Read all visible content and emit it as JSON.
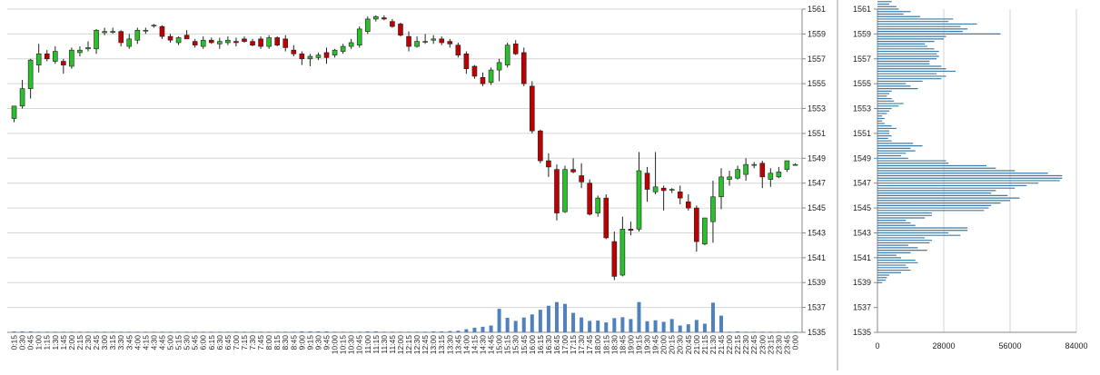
{
  "chart_data": [
    {
      "type": "candlestick",
      "name": "price-chart",
      "ylim": [
        1535,
        1561
      ],
      "y_ticks": [
        1535,
        1537,
        1539,
        1541,
        1543,
        1545,
        1547,
        1549,
        1551,
        1553,
        1555,
        1557,
        1559,
        1561
      ],
      "grid": true,
      "x_labels": [
        "0:15",
        "0:30",
        "0:45",
        "1:00",
        "1:15",
        "1:30",
        "1:45",
        "2:00",
        "2:15",
        "2:30",
        "2:45",
        "3:00",
        "3:15",
        "3:30",
        "3:45",
        "4:00",
        "4:15",
        "4:30",
        "4:45",
        "5:00",
        "5:15",
        "5:30",
        "5:45",
        "6:00",
        "6:15",
        "6:30",
        "6:45",
        "7:00",
        "7:15",
        "7:30",
        "7:45",
        "8:00",
        "8:15",
        "8:30",
        "8:45",
        "9:00",
        "9:15",
        "9:30",
        "9:45",
        "10:00",
        "10:15",
        "10:30",
        "10:45",
        "11:00",
        "11:15",
        "11:30",
        "11:45",
        "12:00",
        "12:15",
        "12:30",
        "12:45",
        "13:00",
        "13:15",
        "13:30",
        "13:45",
        "14:00",
        "14:15",
        "14:30",
        "14:45",
        "15:00",
        "15:15",
        "15:30",
        "15:45",
        "16:00",
        "16:15",
        "16:30",
        "16:45",
        "17:00",
        "17:15",
        "17:30",
        "17:45",
        "18:00",
        "18:15",
        "18:30",
        "18:45",
        "19:00",
        "19:15",
        "19:30",
        "19:45",
        "20:00",
        "20:15",
        "20:30",
        "20:45",
        "21:00",
        "21:15",
        "21:30",
        "21:45",
        "22:00",
        "22:15",
        "22:30",
        "22:45",
        "23:00",
        "23:15",
        "23:30",
        "23:45",
        "0:00"
      ],
      "candles": [
        [
          1552.2,
          1553.2,
          1551.9,
          1553.2
        ],
        [
          1553.2,
          1555.3,
          1553.0,
          1554.6
        ],
        [
          1554.6,
          1557.0,
          1553.8,
          1556.9
        ],
        [
          1556.5,
          1558.2,
          1555.9,
          1557.4
        ],
        [
          1557.4,
          1557.7,
          1556.8,
          1557.0
        ],
        [
          1556.8,
          1558.0,
          1556.6,
          1557.6
        ],
        [
          1556.8,
          1557.0,
          1555.8,
          1556.5
        ],
        [
          1556.4,
          1557.9,
          1556.2,
          1557.7
        ],
        [
          1557.5,
          1558.0,
          1557.2,
          1557.7
        ],
        [
          1557.8,
          1558.4,
          1557.6,
          1557.9
        ],
        [
          1557.8,
          1559.4,
          1557.4,
          1559.3
        ],
        [
          1559.1,
          1559.5,
          1558.9,
          1559.2
        ],
        [
          1559.2,
          1559.5,
          1559.0,
          1559.2
        ],
        [
          1559.2,
          1559.3,
          1558.0,
          1558.3
        ],
        [
          1558.0,
          1559.0,
          1557.8,
          1558.6
        ],
        [
          1558.5,
          1559.5,
          1558.2,
          1559.3
        ],
        [
          1559.3,
          1559.5,
          1559.0,
          1559.3
        ],
        [
          1559.7,
          1559.8,
          1559.5,
          1559.7
        ],
        [
          1559.6,
          1559.7,
          1558.6,
          1558.8
        ],
        [
          1558.8,
          1559.0,
          1558.3,
          1558.5
        ],
        [
          1558.3,
          1558.8,
          1558.1,
          1558.7
        ],
        [
          1558.9,
          1559.3,
          1558.7,
          1558.6
        ],
        [
          1558.4,
          1558.6,
          1557.9,
          1558.1
        ],
        [
          1558.0,
          1558.8,
          1557.8,
          1558.5
        ],
        [
          1558.5,
          1558.7,
          1558.2,
          1558.3
        ],
        [
          1558.2,
          1558.7,
          1557.8,
          1558.4
        ],
        [
          1558.3,
          1558.8,
          1558.1,
          1558.5
        ],
        [
          1558.4,
          1558.7,
          1558.0,
          1558.3
        ],
        [
          1558.6,
          1558.8,
          1558.3,
          1558.4
        ],
        [
          1558.4,
          1558.6,
          1558.0,
          1558.1
        ],
        [
          1558.6,
          1558.8,
          1557.8,
          1558.0
        ],
        [
          1558.0,
          1558.9,
          1557.8,
          1558.7
        ],
        [
          1558.7,
          1558.8,
          1558.0,
          1558.1
        ],
        [
          1558.6,
          1558.9,
          1557.6,
          1557.9
        ],
        [
          1557.7,
          1558.1,
          1557.2,
          1557.4
        ],
        [
          1557.4,
          1557.6,
          1556.5,
          1557.0
        ],
        [
          1557.0,
          1557.4,
          1556.4,
          1557.2
        ],
        [
          1557.1,
          1557.5,
          1556.9,
          1557.3
        ],
        [
          1557.5,
          1557.9,
          1556.6,
          1557.1
        ],
        [
          1557.3,
          1557.8,
          1557.1,
          1557.7
        ],
        [
          1557.6,
          1558.2,
          1557.4,
          1558.0
        ],
        [
          1558.0,
          1558.6,
          1557.8,
          1558.3
        ],
        [
          1558.1,
          1559.6,
          1557.9,
          1559.4
        ],
        [
          1559.2,
          1560.4,
          1559.0,
          1560.2
        ],
        [
          1560.2,
          1560.5,
          1560.0,
          1560.4
        ],
        [
          1560.3,
          1560.5,
          1560.1,
          1560.2
        ],
        [
          1560.0,
          1560.2,
          1559.5,
          1559.6
        ],
        [
          1559.8,
          1559.9,
          1558.8,
          1558.9
        ],
        [
          1558.8,
          1559.2,
          1557.6,
          1558.0
        ],
        [
          1558.0,
          1558.8,
          1557.9,
          1558.4
        ],
        [
          1558.4,
          1559.0,
          1558.2,
          1558.4
        ],
        [
          1558.5,
          1558.9,
          1558.2,
          1558.6
        ],
        [
          1558.6,
          1558.8,
          1558.1,
          1558.3
        ],
        [
          1558.4,
          1558.6,
          1557.9,
          1558.2
        ],
        [
          1558.1,
          1558.3,
          1557.1,
          1557.3
        ],
        [
          1557.4,
          1557.6,
          1555.8,
          1556.2
        ],
        [
          1556.4,
          1556.5,
          1555.4,
          1555.6
        ],
        [
          1555.5,
          1555.9,
          1554.8,
          1555.0
        ],
        [
          1555.1,
          1556.3,
          1554.9,
          1556.1
        ],
        [
          1556.1,
          1557.0,
          1555.2,
          1556.7
        ],
        [
          1556.5,
          1558.3,
          1556.3,
          1558.1
        ],
        [
          1558.2,
          1558.5,
          1557.3,
          1557.4
        ],
        [
          1557.5,
          1557.9,
          1554.8,
          1555.0
        ],
        [
          1554.8,
          1555.2,
          1551.0,
          1551.2
        ],
        [
          1551.2,
          1551.3,
          1548.6,
          1548.8
        ],
        [
          1548.8,
          1549.4,
          1547.5,
          1548.3
        ],
        [
          1548.1,
          1548.5,
          1544.0,
          1544.6
        ],
        [
          1544.7,
          1548.4,
          1544.6,
          1548.1
        ],
        [
          1548.1,
          1549.0,
          1547.8,
          1547.9
        ],
        [
          1547.6,
          1548.6,
          1546.6,
          1547.1
        ],
        [
          1547.0,
          1547.3,
          1544.4,
          1544.5
        ],
        [
          1544.6,
          1546.0,
          1544.3,
          1545.8
        ],
        [
          1545.8,
          1546.1,
          1542.5,
          1542.6
        ],
        [
          1542.3,
          1543.1,
          1539.2,
          1539.5
        ],
        [
          1539.6,
          1544.3,
          1539.5,
          1543.3
        ],
        [
          1543.3,
          1543.9,
          1542.8,
          1543.2
        ],
        [
          1543.3,
          1549.5,
          1543.1,
          1548.0
        ],
        [
          1547.8,
          1548.3,
          1545.5,
          1546.5
        ],
        [
          1546.3,
          1549.5,
          1546.1,
          1546.7
        ],
        [
          1546.6,
          1546.8,
          1544.8,
          1546.4
        ],
        [
          1546.5,
          1546.6,
          1546.2,
          1546.5
        ],
        [
          1546.3,
          1546.8,
          1545.3,
          1545.8
        ],
        [
          1545.5,
          1546.1,
          1544.8,
          1545.0
        ],
        [
          1545.0,
          1545.2,
          1541.5,
          1542.3
        ],
        [
          1542.1,
          1544.2,
          1542.0,
          1544.2
        ],
        [
          1543.9,
          1547.2,
          1542.2,
          1545.9
        ],
        [
          1545.9,
          1548.2,
          1544.9,
          1547.5
        ],
        [
          1547.3,
          1548.0,
          1546.8,
          1547.5
        ],
        [
          1547.4,
          1548.4,
          1547.3,
          1548.1
        ],
        [
          1547.7,
          1549.0,
          1547.2,
          1548.5
        ],
        [
          1548.5,
          1548.7,
          1548.2,
          1548.5
        ],
        [
          1548.6,
          1548.8,
          1546.6,
          1547.5
        ],
        [
          1547.3,
          1548.2,
          1546.7,
          1547.8
        ],
        [
          1547.5,
          1548.3,
          1547.4,
          1547.9
        ],
        [
          1548.1,
          1548.8,
          1547.9,
          1548.8
        ],
        [
          1548.5,
          1548.6,
          1548.4,
          1548.5
        ]
      ],
      "volume_relative": [
        0.03,
        0.03,
        0.03,
        0.02,
        0.02,
        0.02,
        0.02,
        0.02,
        0.02,
        0.02,
        0.02,
        0.02,
        0.02,
        0.02,
        0.02,
        0.02,
        0.02,
        0.02,
        0.02,
        0.02,
        0.02,
        0.02,
        0.02,
        0.02,
        0.02,
        0.02,
        0.02,
        0.02,
        0.02,
        0.02,
        0.02,
        0.02,
        0.02,
        0.02,
        0.02,
        0.03,
        0.03,
        0.03,
        0.03,
        0.02,
        0.02,
        0.02,
        0.02,
        0.03,
        0.03,
        0.02,
        0.02,
        0.02,
        0.02,
        0.02,
        0.02,
        0.03,
        0.03,
        0.04,
        0.05,
        0.1,
        0.15,
        0.18,
        0.22,
        0.76,
        0.47,
        0.37,
        0.48,
        0.58,
        0.73,
        0.86,
        0.98,
        0.92,
        0.63,
        0.48,
        0.37,
        0.38,
        0.32,
        0.46,
        0.49,
        0.43,
        0.98,
        0.36,
        0.39,
        0.34,
        0.43,
        0.22,
        0.26,
        0.4,
        0.28,
        0.96,
        0.54,
        0.02,
        0.03,
        0.02,
        0.02,
        0.02,
        0.02,
        0.02,
        0.02,
        0.02
      ]
    },
    {
      "type": "horizontal_bar",
      "name": "volume-profile",
      "ylim": [
        1535,
        1561
      ],
      "y_ticks": [
        1535,
        1537,
        1539,
        1541,
        1543,
        1545,
        1547,
        1549,
        1551,
        1553,
        1555,
        1557,
        1559,
        1561
      ],
      "xlim": [
        0,
        84000
      ],
      "x_ticks": [
        0,
        28000,
        56000,
        84000
      ],
      "grid": true,
      "bin_size": 0.2,
      "bins_from": 1539.0,
      "values": [
        2000,
        3500,
        4000,
        5000,
        10000,
        14000,
        13000,
        12000,
        17000,
        16000,
        10000,
        8000,
        14000,
        21000,
        17000,
        13000,
        22000,
        23000,
        20000,
        35000,
        30000,
        38000,
        38000,
        16000,
        14000,
        12000,
        20000,
        23000,
        23000,
        45000,
        47000,
        48000,
        52000,
        56000,
        60000,
        55000,
        48000,
        50000,
        58000,
        63000,
        68000,
        77000,
        78000,
        78000,
        72000,
        58000,
        50000,
        46000,
        30000,
        29000,
        13000,
        10000,
        12000,
        16000,
        14000,
        19000,
        15000,
        6000,
        4500,
        6000,
        5000,
        5000,
        8000,
        6000,
        3000,
        2000,
        3000,
        2000,
        4000,
        5000,
        6000,
        9000,
        11000,
        7000,
        6000,
        4000,
        5000,
        6000,
        17000,
        14000,
        12000,
        19000,
        27000,
        29000,
        25000,
        33000,
        29000,
        27000,
        22000,
        22000,
        25000,
        26000,
        25000,
        26000,
        24000,
        21000,
        20000,
        24000,
        28000,
        29000,
        52000,
        36000,
        38000,
        35000,
        42000,
        30000,
        32000,
        18000,
        11000,
        14000,
        9000,
        8000,
        5000,
        6000,
        3000,
        2500
      ]
    }
  ]
}
